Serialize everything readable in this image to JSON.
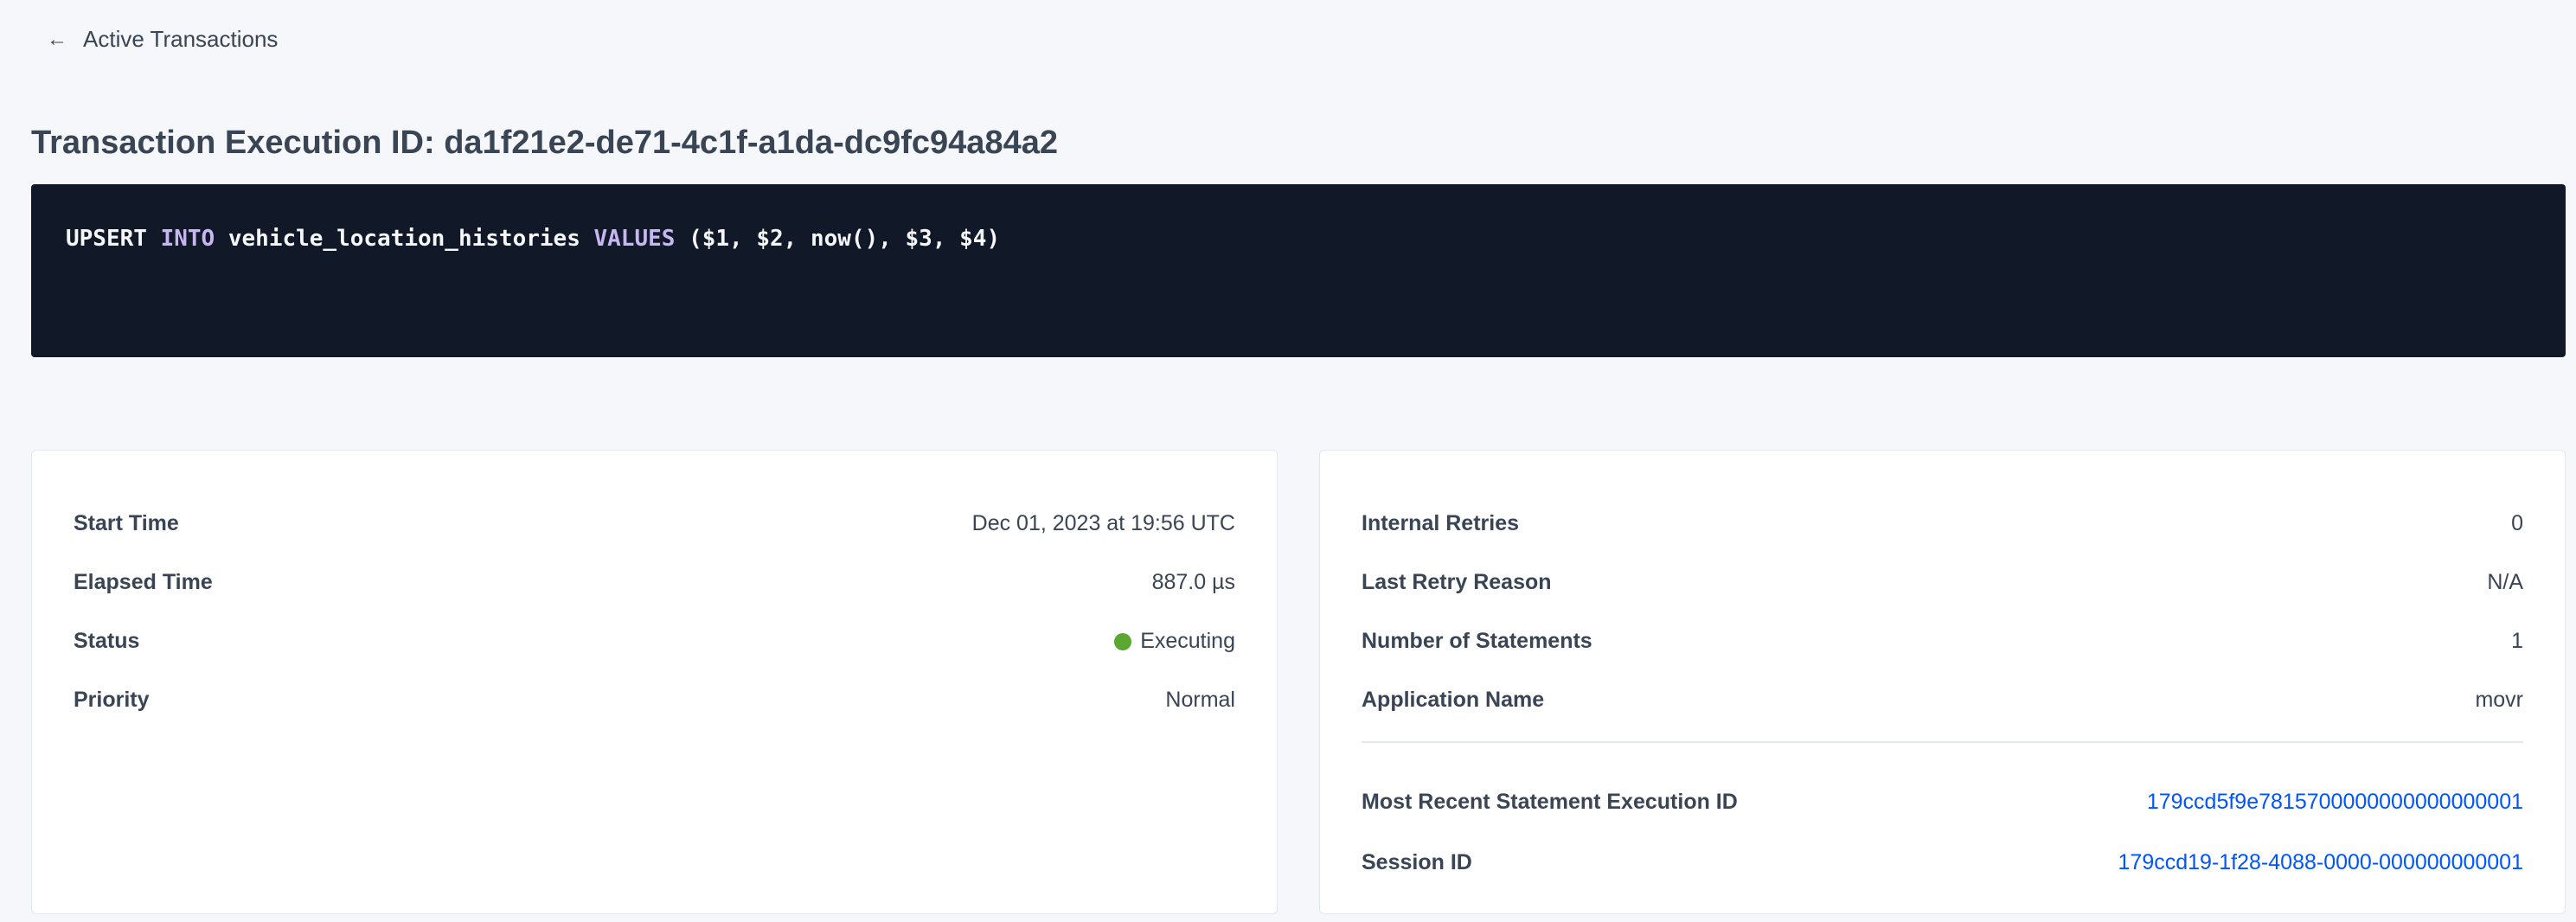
{
  "nav": {
    "back_label": "Active Transactions",
    "back_icon": "arrow-left-icon"
  },
  "page": {
    "title": "Transaction Execution ID: da1f21e2-de71-4c1f-a1da-dc9fc94a84a2"
  },
  "sql": {
    "tokens": [
      {
        "text": "UPSERT ",
        "type": "plain"
      },
      {
        "text": "INTO",
        "type": "keyword"
      },
      {
        "text": " vehicle_location_histories ",
        "type": "plain"
      },
      {
        "text": "VALUES",
        "type": "keyword"
      },
      {
        "text": " ($1, $2, now(), $3, $4)",
        "type": "plain"
      }
    ],
    "keyword_color": "#c6b6f2",
    "background": "#111827"
  },
  "left_card": {
    "rows": [
      {
        "label": "Start Time",
        "value": "Dec 01, 2023 at 19:56 UTC"
      },
      {
        "label": "Elapsed Time",
        "value": "887.0 µs"
      },
      {
        "label": "Status",
        "value": "Executing",
        "status_color": "#5aa832"
      },
      {
        "label": "Priority",
        "value": "Normal"
      }
    ]
  },
  "right_card": {
    "rows": [
      {
        "label": "Internal Retries",
        "value": "0"
      },
      {
        "label": "Last Retry Reason",
        "value": "N/A"
      },
      {
        "label": "Number of Statements",
        "value": "1"
      },
      {
        "label": "Application Name",
        "value": "movr"
      }
    ],
    "links": [
      {
        "label": "Most Recent Statement Execution ID",
        "value": "179ccd5f9e7815700000000000000001"
      },
      {
        "label": "Session ID",
        "value": "179ccd19-1f28-4088-0000-000000000001"
      }
    ],
    "link_color": "#0055ff"
  }
}
